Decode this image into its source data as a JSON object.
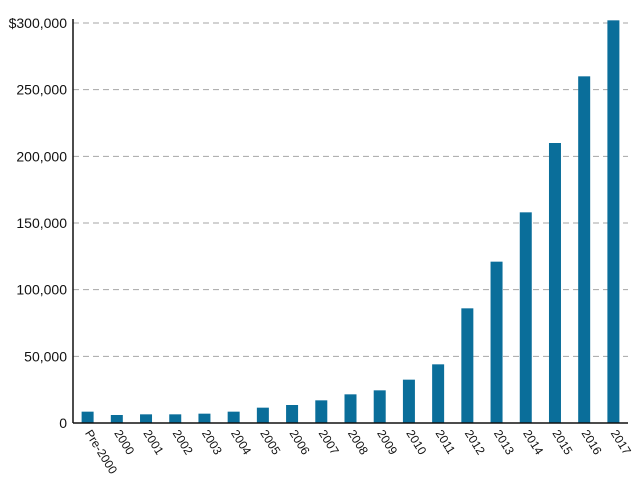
{
  "chart_data": {
    "type": "bar",
    "title": "",
    "xlabel": "",
    "ylabel": "",
    "categories": [
      "Pre-2000",
      "2000",
      "2001",
      "2002",
      "2003",
      "2004",
      "2005",
      "2006",
      "2007",
      "2008",
      "2009",
      "2010",
      "2011",
      "2012",
      "2013",
      "2014",
      "2015",
      "2016",
      "2017"
    ],
    "values": [
      8500,
      6000,
      6500,
      6500,
      7000,
      8500,
      11500,
      13500,
      17000,
      21500,
      24500,
      32500,
      44000,
      86000,
      121000,
      158000,
      210000,
      260000,
      302000
    ],
    "ylim": [
      0,
      300000
    ],
    "y_ticks": [
      0,
      50000,
      100000,
      150000,
      200000,
      250000,
      300000
    ],
    "y_tick_labels": [
      "0",
      "50,000",
      "100,000",
      "150,000",
      "200,000",
      "250,000",
      "$300,000"
    ],
    "grid": true,
    "bar_color": "#0a6e9a",
    "grid_color": "#a6a6a6"
  }
}
